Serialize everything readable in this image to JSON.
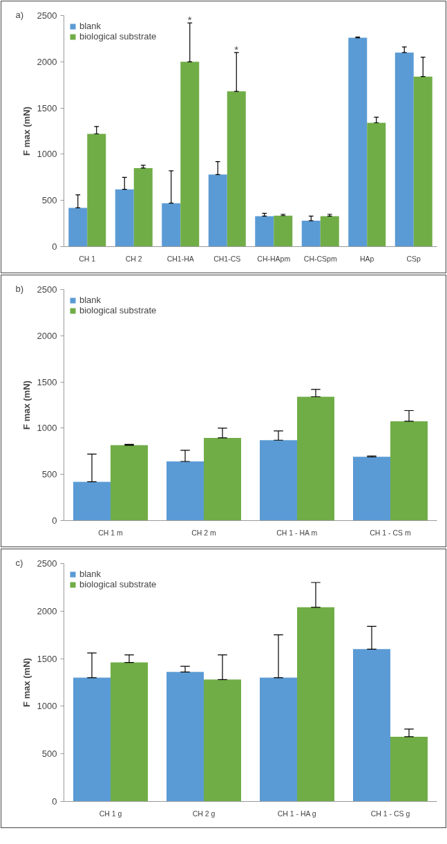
{
  "chart_data": [
    {
      "type": "bar",
      "annotations": [
        "a)",
        "*",
        "*"
      ],
      "ylabel": "F max (mN)",
      "categories": [
        "CH 1",
        "CH 2",
        "CH1-HA",
        "CH1-CS",
        "CH-HApm",
        "CH-CSpm",
        "HAp",
        "CSp"
      ],
      "series": [
        {
          "name": "blank",
          "color": "#5b9bd5",
          "values": [
            420,
            620,
            470,
            780,
            330,
            280,
            2260,
            2100
          ],
          "errors": [
            [
              420,
              560
            ],
            [
              620,
              750
            ],
            [
              470,
              820
            ],
            [
              780,
              920
            ],
            [
              330,
              360
            ],
            [
              280,
              330
            ],
            [
              2260,
              2270
            ],
            [
              2100,
              2160
            ]
          ]
        },
        {
          "name": "biological substrate",
          "color": "#70ad47",
          "values": [
            1220,
            850,
            2000,
            1680,
            335,
            330,
            1340,
            1840
          ],
          "errors": [
            [
              1220,
              1300
            ],
            [
              850,
              880
            ],
            [
              2000,
              2420
            ],
            [
              1680,
              2100
            ],
            [
              335,
              350
            ],
            [
              330,
              350
            ],
            [
              1340,
              1400
            ],
            [
              1840,
              2050
            ]
          ]
        }
      ],
      "ylim": [
        0,
        2500
      ],
      "yticks": [
        0,
        500,
        1000,
        1500,
        2000,
        2500
      ],
      "legend": "top left"
    },
    {
      "type": "bar",
      "annotations": [
        "b)"
      ],
      "ylabel": "F max (mN)",
      "categories": [
        "CH 1 m",
        "CH 2 m",
        "CH 1 - HA m",
        "CH 1 - CS m"
      ],
      "series": [
        {
          "name": "blank",
          "color": "#5b9bd5",
          "values": [
            420,
            640,
            870,
            690
          ],
          "errors": [
            [
              420,
              720
            ],
            [
              640,
              760
            ],
            [
              870,
              970
            ],
            [
              690,
              700
            ]
          ]
        },
        {
          "name": "biological substrate",
          "color": "#70ad47",
          "values": [
            815,
            895,
            1340,
            1075
          ],
          "errors": [
            [
              815,
              825
            ],
            [
              895,
              1000
            ],
            [
              1340,
              1420
            ],
            [
              1075,
              1190
            ]
          ]
        }
      ],
      "ylim": [
        0,
        2500
      ],
      "yticks": [
        0,
        500,
        1000,
        1500,
        2000,
        2500
      ],
      "legend": "top left"
    },
    {
      "type": "bar",
      "annotations": [
        "c)"
      ],
      "ylabel": "F max (mN)",
      "categories": [
        "CH 1 g",
        "CH 2 g",
        "CH 1 - HA g",
        "CH 1 - CS g"
      ],
      "series": [
        {
          "name": "blank",
          "color": "#5b9bd5",
          "values": [
            1300,
            1360,
            1300,
            1600
          ],
          "errors": [
            [
              1300,
              1560
            ],
            [
              1360,
              1420
            ],
            [
              1300,
              1750
            ],
            [
              1600,
              1840
            ]
          ]
        },
        {
          "name": "biological substrate",
          "color": "#70ad47",
          "values": [
            1460,
            1280,
            2040,
            680
          ],
          "errors": [
            [
              1460,
              1540
            ],
            [
              1280,
              1540
            ],
            [
              2040,
              2300
            ],
            [
              680,
              760
            ]
          ]
        }
      ],
      "ylim": [
        0,
        2500
      ],
      "yticks": [
        0,
        500,
        1000,
        1500,
        2000,
        2500
      ],
      "legend": "top left"
    }
  ]
}
